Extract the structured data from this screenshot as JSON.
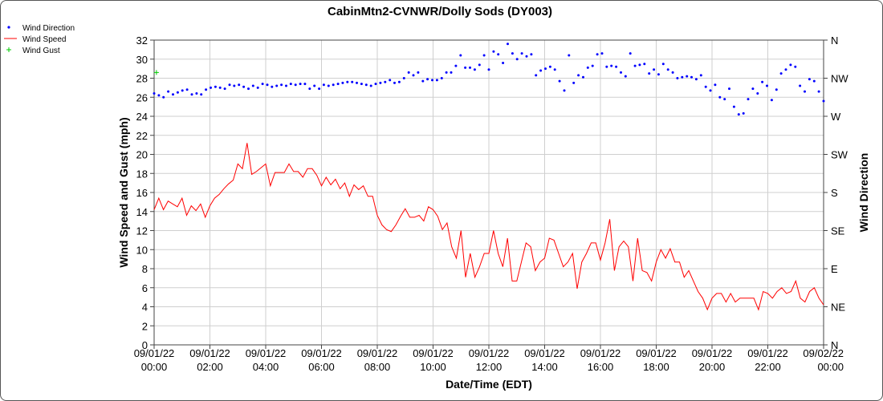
{
  "chart_data": {
    "type": "line",
    "title": "CabinMtn2-CVNWR/Dolly Sods (DY003)",
    "xlabel": "Date/Time (EDT)",
    "ylabel": "Wind Speed and Gust (mph)",
    "y2label": "Wind Direction",
    "ylim": [
      0,
      32
    ],
    "xlim_hours": [
      0,
      24
    ],
    "grid": true,
    "legend_position": "top-left",
    "x_ticks": [
      {
        "line1": "09/01/22",
        "line2": "00:00"
      },
      {
        "line1": "09/01/22",
        "line2": "02:00"
      },
      {
        "line1": "09/01/22",
        "line2": "04:00"
      },
      {
        "line1": "09/01/22",
        "line2": "06:00"
      },
      {
        "line1": "09/01/22",
        "line2": "08:00"
      },
      {
        "line1": "09/01/22",
        "line2": "10:00"
      },
      {
        "line1": "09/01/22",
        "line2": "12:00"
      },
      {
        "line1": "09/01/22",
        "line2": "14:00"
      },
      {
        "line1": "09/01/22",
        "line2": "16:00"
      },
      {
        "line1": "09/01/22",
        "line2": "18:00"
      },
      {
        "line1": "09/01/22",
        "line2": "20:00"
      },
      {
        "line1": "09/01/22",
        "line2": "22:00"
      },
      {
        "line1": "09/02/22",
        "line2": "00:00"
      }
    ],
    "y_ticks": [
      "0",
      "2",
      "4",
      "6",
      "8",
      "10",
      "12",
      "14",
      "16",
      "18",
      "20",
      "22",
      "24",
      "26",
      "28",
      "30",
      "32"
    ],
    "y2_ticks": [
      "N",
      "NE",
      "E",
      "SE",
      "S",
      "SW",
      "W",
      "NW",
      "N"
    ],
    "series": [
      {
        "name": "Wind Direction",
        "marker": "dot",
        "color": "#0000ff",
        "values": [
          26.4,
          26.2,
          26.0,
          26.6,
          26.3,
          26.5,
          26.7,
          26.8,
          26.3,
          26.4,
          26.3,
          26.8,
          27.0,
          27.1,
          27.0,
          26.9,
          27.3,
          27.2,
          27.3,
          27.1,
          26.9,
          27.2,
          27.0,
          27.4,
          27.3,
          27.1,
          27.2,
          27.3,
          27.2,
          27.4,
          27.3,
          27.4,
          27.4,
          26.9,
          27.2,
          26.9,
          27.3,
          27.2,
          27.3,
          27.4,
          27.5,
          27.6,
          27.6,
          27.5,
          27.4,
          27.3,
          27.2,
          27.4,
          27.5,
          27.6,
          27.8,
          27.5,
          27.6,
          28.0,
          28.6,
          28.3,
          28.6,
          27.7,
          27.9,
          27.8,
          27.8,
          28.0,
          28.6,
          28.6,
          29.3,
          30.4,
          29.1,
          29.1,
          28.9,
          29.4,
          30.4,
          28.9,
          30.8,
          30.5,
          29.6,
          31.6,
          30.6,
          30.0,
          30.6,
          30.3,
          30.5,
          28.3,
          28.8,
          29.0,
          29.2,
          28.9,
          27.7,
          26.7,
          30.4,
          27.5,
          28.3,
          28.1,
          29.1,
          29.3,
          30.5,
          30.6,
          29.2,
          29.3,
          29.2,
          28.6,
          28.2,
          30.6,
          29.3,
          29.4,
          29.5,
          28.5,
          28.9,
          28.4,
          29.5,
          28.9,
          28.6,
          28.0,
          28.1,
          28.2,
          28.1,
          27.9,
          28.3,
          27.1,
          26.7,
          27.3,
          26.0,
          25.8,
          26.9,
          25.0,
          24.2,
          24.3,
          25.8,
          26.9,
          26.4,
          27.6,
          27.2,
          25.7,
          26.8,
          28.5,
          28.9,
          29.4,
          29.2,
          27.2,
          26.6,
          27.9,
          27.7,
          26.6,
          25.6
        ]
      },
      {
        "name": "Wind Speed",
        "marker": "line",
        "color": "#ff0000",
        "values": [
          14.2,
          15.4,
          14.2,
          15.1,
          14.8,
          14.5,
          15.4,
          13.6,
          14.6,
          14.1,
          14.8,
          13.4,
          14.6,
          15.4,
          15.8,
          16.4,
          16.9,
          17.3,
          19.0,
          18.5,
          21.2,
          17.9,
          18.2,
          18.6,
          19.0,
          16.7,
          18.1,
          18.1,
          18.1,
          19.0,
          18.2,
          18.2,
          17.6,
          18.5,
          18.5,
          17.8,
          16.7,
          17.6,
          16.8,
          17.4,
          16.4,
          17.0,
          15.6,
          16.8,
          16.3,
          16.7,
          15.6,
          15.6,
          13.6,
          12.6,
          12.1,
          11.9,
          12.6,
          13.5,
          14.3,
          13.4,
          13.4,
          13.6,
          13.0,
          14.5,
          14.2,
          13.5,
          12.1,
          12.8,
          10.3,
          9.1,
          12.0,
          7.1,
          9.6,
          7.1,
          8.2,
          9.6,
          9.6,
          12.0,
          9.6,
          8.2,
          11.2,
          6.7,
          6.7,
          8.7,
          10.7,
          10.3,
          7.8,
          8.7,
          9.1,
          11.2,
          11.0,
          9.6,
          8.2,
          8.7,
          9.6,
          5.9,
          8.7,
          9.6,
          10.7,
          10.7,
          8.9,
          10.7,
          13.2,
          7.8,
          10.3,
          10.9,
          10.3,
          6.7,
          11.2,
          7.8,
          7.6,
          6.7,
          8.7,
          10.0,
          9.1,
          10.1,
          8.7,
          8.7,
          7.1,
          7.8,
          6.7,
          5.6,
          4.9,
          3.7,
          4.9,
          5.4,
          5.4,
          4.5,
          5.4,
          4.5,
          4.9,
          4.9,
          4.9,
          4.9,
          3.7,
          5.6,
          5.4,
          4.9,
          5.6,
          6.0,
          5.4,
          5.6,
          6.7,
          4.9,
          4.5,
          5.6,
          6.0,
          4.9,
          4.2
        ]
      },
      {
        "name": "Wind Gust",
        "marker": "plus",
        "color": "#00cc00",
        "points": [
          {
            "hour": 0.08333,
            "value": 28.6
          }
        ]
      }
    ]
  }
}
